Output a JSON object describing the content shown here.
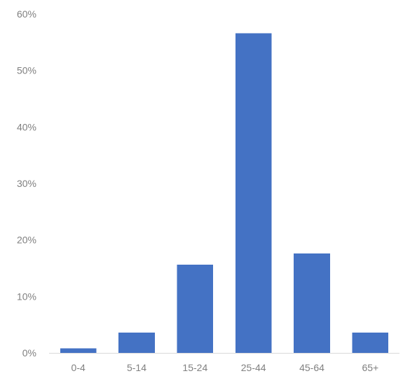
{
  "chart_data": {
    "type": "bar",
    "categories": [
      "0-4",
      "5-14",
      "15-24",
      "25-44",
      "45-64",
      "65+"
    ],
    "values": [
      0.8,
      3.6,
      15.6,
      56.6,
      17.6,
      3.6
    ],
    "y_tick_labels": [
      "0%",
      "10%",
      "20%",
      "30%",
      "40%",
      "50%",
      "60%"
    ],
    "y_ticks": [
      0,
      10,
      20,
      30,
      40,
      50,
      60
    ],
    "ylim": [
      0,
      60
    ],
    "grid": false,
    "legend": "none",
    "bar_color": "#4472c4",
    "axis_color": "#d9d9d9",
    "label_color": "#808080"
  }
}
